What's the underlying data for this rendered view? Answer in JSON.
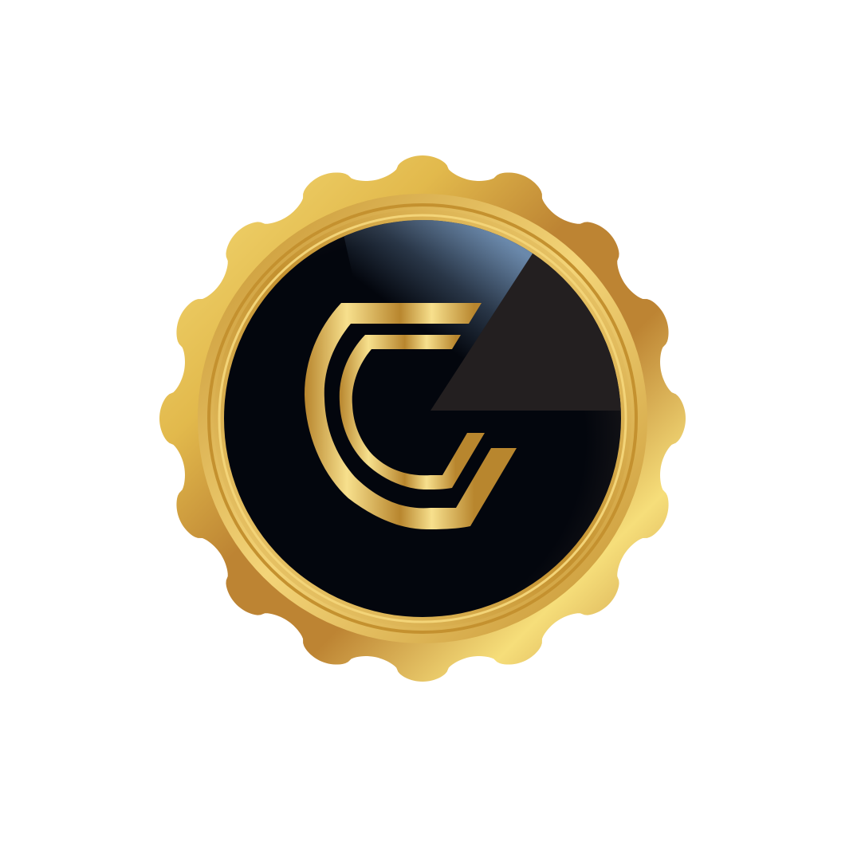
{
  "page": {
    "background": "#ffffff"
  },
  "badge": {
    "kind": "gold-seal-badge",
    "scallop_count": 16,
    "colors": {
      "gold_light": "#f6de7a",
      "gold_mid": "#e2b94c",
      "gold_dark": "#bd8433",
      "ring_bright": "#f3d478",
      "ring_shadow": "#c4912f",
      "face_black": "#03060d",
      "face_charcoal": "#231f20",
      "face_glint": "#6f8fb3"
    }
  },
  "emblem": {
    "kind": "monogram-logo",
    "icon": "stylized-c-monogram-icon",
    "colors": {
      "gold_dark": "#b8862e",
      "gold_light": "#f7e08d"
    }
  }
}
